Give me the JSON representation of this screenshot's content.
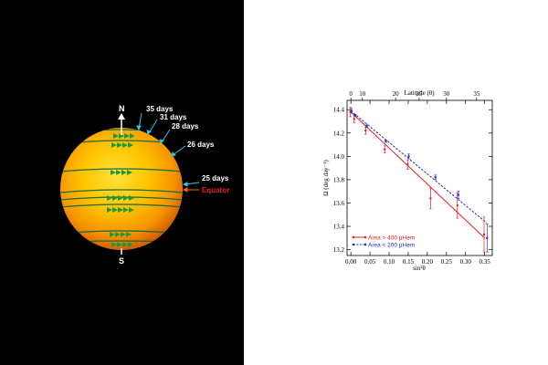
{
  "sun_diagram": {
    "north_label": "N",
    "south_label": "S",
    "equator_label": "Equator",
    "period_labels": [
      "35 days",
      "31 days",
      "28 days",
      "26 days",
      "25 days"
    ],
    "colors": {
      "sun_inner": "#ffd000",
      "sun_outer": "#e06800",
      "bands": "#1a6a3a",
      "arrows": "#1e9a3e",
      "pointers": "#2ec5ea",
      "equator": "#e8202a"
    }
  },
  "chart_data": {
    "type": "scatter",
    "xlabel": "sin²θ",
    "ylabel": "Ω (deg day⁻¹)",
    "top_axis_label": "Latitude (θ)",
    "xlim": [
      -0.01,
      0.37
    ],
    "ylim": [
      13.15,
      14.48
    ],
    "x_ticks": [
      0.0,
      0.05,
      0.1,
      0.15,
      0.2,
      0.25,
      0.3,
      0.35
    ],
    "x_tick_labels": [
      "0.00",
      "0.05",
      "0.10",
      "0.15",
      "0.20",
      "0.25",
      "0.30",
      "0.35"
    ],
    "y_ticks": [
      13.2,
      13.4,
      13.6,
      13.8,
      14.0,
      14.2,
      14.4
    ],
    "y_tick_labels": [
      "13.2",
      "13.4",
      "13.6",
      "13.8",
      "14.0",
      "14.2",
      "14.4"
    ],
    "top_ticks": [
      0,
      10,
      20,
      25,
      30,
      35
    ],
    "top_tick_labels": [
      "0",
      "10",
      "20",
      "25",
      "30",
      "35"
    ],
    "grid": false,
    "legend_position": "bottom-left",
    "series": [
      {
        "name": "Area > 400 μHem",
        "color": "#e02020",
        "line_style": "solid",
        "fit": {
          "x": [
            0.0,
            0.35
          ],
          "y": [
            14.38,
            13.3
          ]
        },
        "points": [
          {
            "x": 0.0,
            "y": 14.38,
            "err": 0.04
          },
          {
            "x": 0.01,
            "y": 14.32,
            "err": 0.03
          },
          {
            "x": 0.04,
            "y": 14.22,
            "err": 0.03
          },
          {
            "x": 0.09,
            "y": 14.06,
            "err": 0.03
          },
          {
            "x": 0.15,
            "y": 13.93,
            "err": 0.04
          },
          {
            "x": 0.21,
            "y": 13.64,
            "err": 0.09
          },
          {
            "x": 0.28,
            "y": 13.58,
            "err": 0.11
          },
          {
            "x": 0.35,
            "y": 13.33,
            "err": 0.15
          }
        ]
      },
      {
        "name": "Area < 200 μHem",
        "color": "#2030c0",
        "line_style": "dashed",
        "fit": {
          "x": [
            0.0,
            0.355
          ],
          "y": [
            14.39,
            13.43
          ]
        },
        "points": [
          {
            "x": 0.0,
            "y": 14.39,
            "err": 0.02
          },
          {
            "x": 0.01,
            "y": 14.35,
            "err": 0.01
          },
          {
            "x": 0.04,
            "y": 14.26,
            "err": 0.01
          },
          {
            "x": 0.09,
            "y": 14.13,
            "err": 0.01
          },
          {
            "x": 0.15,
            "y": 14.0,
            "err": 0.02
          },
          {
            "x": 0.22,
            "y": 13.82,
            "err": 0.02
          },
          {
            "x": 0.28,
            "y": 13.67,
            "err": 0.03
          },
          {
            "x": 0.355,
            "y": 13.3,
            "err": 0.12
          }
        ]
      }
    ]
  }
}
